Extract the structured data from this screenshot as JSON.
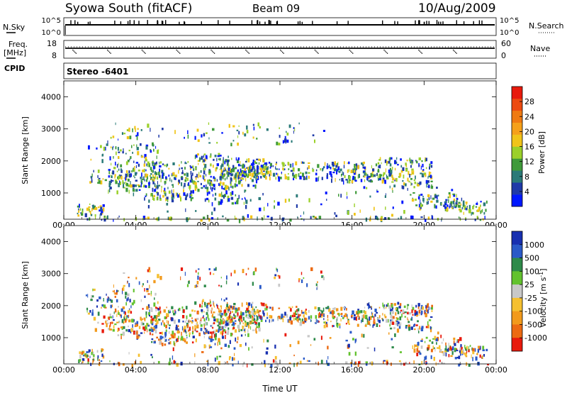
{
  "header": {
    "site": "Syowa South (fitACF)",
    "beam": "Beam 09",
    "date": "10/Aug/2009"
  },
  "side_labels": {
    "nsky": "N.Sky",
    "freq_line1": "Freq.",
    "freq_line2": "[MHz]",
    "cpid": "CPID",
    "nsearch": "N.Search",
    "nave": "Nave",
    "cpid_value": "Stereo -6401"
  },
  "chart_data": [
    {
      "type": "line",
      "panel": "N.Sky / N.Search",
      "y_ticks_left": [
        "10^5",
        "10^0"
      ],
      "y_ticks_right": [
        "10^5",
        "10^0"
      ]
    },
    {
      "type": "line",
      "panel": "Freq / Nave",
      "y_ticks_left": [
        "18",
        "8"
      ],
      "y_ticks_right": [
        "60",
        "0"
      ]
    },
    {
      "type": "heatmap",
      "panel": "power",
      "xlabel": "",
      "ylabel": "Slant Range [km]",
      "ylim": [
        180,
        4500
      ],
      "y_ticks": [
        "1000",
        "2000",
        "3000",
        "4000"
      ],
      "x_ticks": [
        "00:00",
        "04:00",
        "08:00",
        "12:00",
        "16:00",
        "20:00",
        "00:00"
      ],
      "colorbar": {
        "label": "Power [dB]",
        "ticks": [
          "4",
          "8",
          "12",
          "16",
          "20",
          "24",
          "28"
        ],
        "colors": [
          "#0018ff",
          "#1f3aa8",
          "#2a7a78",
          "#3f9a3a",
          "#9bd02a",
          "#f0c419",
          "#f5a01a",
          "#ef7a12",
          "#ec4a10",
          "#e81a0c"
        ]
      }
    },
    {
      "type": "heatmap",
      "panel": "velocity",
      "xlabel": "Time UT",
      "ylabel": "Slant Range [km]",
      "ylim": [
        180,
        4500
      ],
      "y_ticks": [
        "1000",
        "2000",
        "3000",
        "4000"
      ],
      "x_ticks": [
        "00:00",
        "04:00",
        "08:00",
        "12:00",
        "16:00",
        "20:00",
        "00:00"
      ],
      "colorbar": {
        "label_main": "Velocity",
        "label_unit": "[m s",
        "label_exp": "-1",
        "label_close": "]",
        "ticks": [
          "1000",
          "500",
          "100",
          "25",
          "-25",
          "-100",
          "-500",
          "-1000"
        ],
        "colors": [
          "#1830b0",
          "#2a5ac8",
          "#2e8a4a",
          "#62c22e",
          "#c8c8c8",
          "#f5c030",
          "#f29a1c",
          "#ec6a12",
          "#e81a0c"
        ]
      }
    }
  ]
}
